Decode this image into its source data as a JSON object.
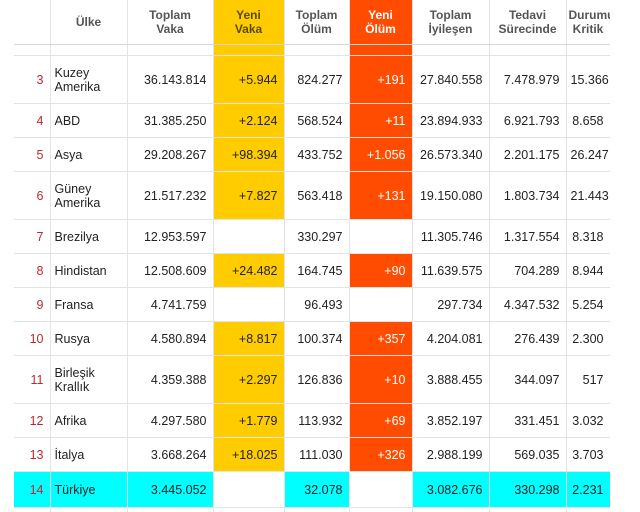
{
  "headers": {
    "country": "Ülke",
    "total_cases": [
      "Toplam",
      "Vaka"
    ],
    "new_cases": [
      "Yeni",
      "Vaka"
    ],
    "total_deaths": [
      "Toplam",
      "Ölüm"
    ],
    "new_deaths": [
      "Yeni",
      "Ölüm"
    ],
    "total_recovered": [
      "Toplam",
      "İyileşen"
    ],
    "active": [
      "Tedavi",
      "Sürecinde"
    ],
    "critical": [
      "Durumu",
      "Kritik"
    ]
  },
  "rows": [
    {
      "rank": "3",
      "name": "Kuzey Amerika",
      "total": "36.143.814",
      "new_cases": "+5.944",
      "deaths": "824.277",
      "new_deaths": "+191",
      "recovered": "27.840.558",
      "active": "7.478.979",
      "critical": "15.366"
    },
    {
      "rank": "4",
      "name": "ABD",
      "total": "31.385.250",
      "new_cases": "+2.124",
      "deaths": "568.524",
      "new_deaths": "+11",
      "recovered": "23.894.933",
      "active": "6.921.793",
      "critical": "8.658"
    },
    {
      "rank": "5",
      "name": "Asya",
      "total": "29.208.267",
      "new_cases": "+98.394",
      "deaths": "433.752",
      "new_deaths": "+1.056",
      "recovered": "26.573.340",
      "active": "2.201.175",
      "critical": "26.247"
    },
    {
      "rank": "6",
      "name": "Güney Amerika",
      "total": "21.517.232",
      "new_cases": "+7.827",
      "deaths": "563.418",
      "new_deaths": "+131",
      "recovered": "19.150.080",
      "active": "1.803.734",
      "critical": "21.443"
    },
    {
      "rank": "7",
      "name": "Brezilya",
      "total": "12.953.597",
      "new_cases": "",
      "deaths": "330.297",
      "new_deaths": "",
      "recovered": "11.305.746",
      "active": "1.317.554",
      "critical": "8.318"
    },
    {
      "rank": "8",
      "name": "Hindistan",
      "total": "12.508.609",
      "new_cases": "+24.482",
      "deaths": "164.745",
      "new_deaths": "+90",
      "recovered": "11.639.575",
      "active": "704.289",
      "critical": "8.944"
    },
    {
      "rank": "9",
      "name": "Fransa",
      "total": "4.741.759",
      "new_cases": "",
      "deaths": "96.493",
      "new_deaths": "",
      "recovered": "297.734",
      "active": "4.347.532",
      "critical": "5.254"
    },
    {
      "rank": "10",
      "name": "Rusya",
      "total": "4.580.894",
      "new_cases": "+8.817",
      "deaths": "100.374",
      "new_deaths": "+357",
      "recovered": "4.204.081",
      "active": "276.439",
      "critical": "2.300"
    },
    {
      "rank": "11",
      "name": "Birleşik Krallık",
      "total": "4.359.388",
      "new_cases": "+2.297",
      "deaths": "126.836",
      "new_deaths": "+10",
      "recovered": "3.888.455",
      "active": "344.097",
      "critical": "517"
    },
    {
      "rank": "12",
      "name": "Afrika",
      "total": "4.297.580",
      "new_cases": "+1.779",
      "deaths": "113.932",
      "new_deaths": "+69",
      "recovered": "3.852.197",
      "active": "331.451",
      "critical": "3.032"
    },
    {
      "rank": "13",
      "name": "İtalya",
      "total": "3.668.264",
      "new_cases": "+18.025",
      "deaths": "111.030",
      "new_deaths": "+326",
      "recovered": "2.988.199",
      "active": "569.035",
      "critical": "3.703"
    },
    {
      "rank": "14",
      "name": "Türkiye",
      "total": "3.445.052",
      "new_cases": "",
      "deaths": "32.078",
      "new_deaths": "",
      "recovered": "3.082.676",
      "active": "330.298",
      "critical": "2.231",
      "highlight": true
    }
  ],
  "colors": {
    "new_cases_bg": "#ffcc00",
    "new_deaths_bg": "#ff4c00",
    "highlight_bg": "#00ffff",
    "rank_text": "#c0272d"
  }
}
